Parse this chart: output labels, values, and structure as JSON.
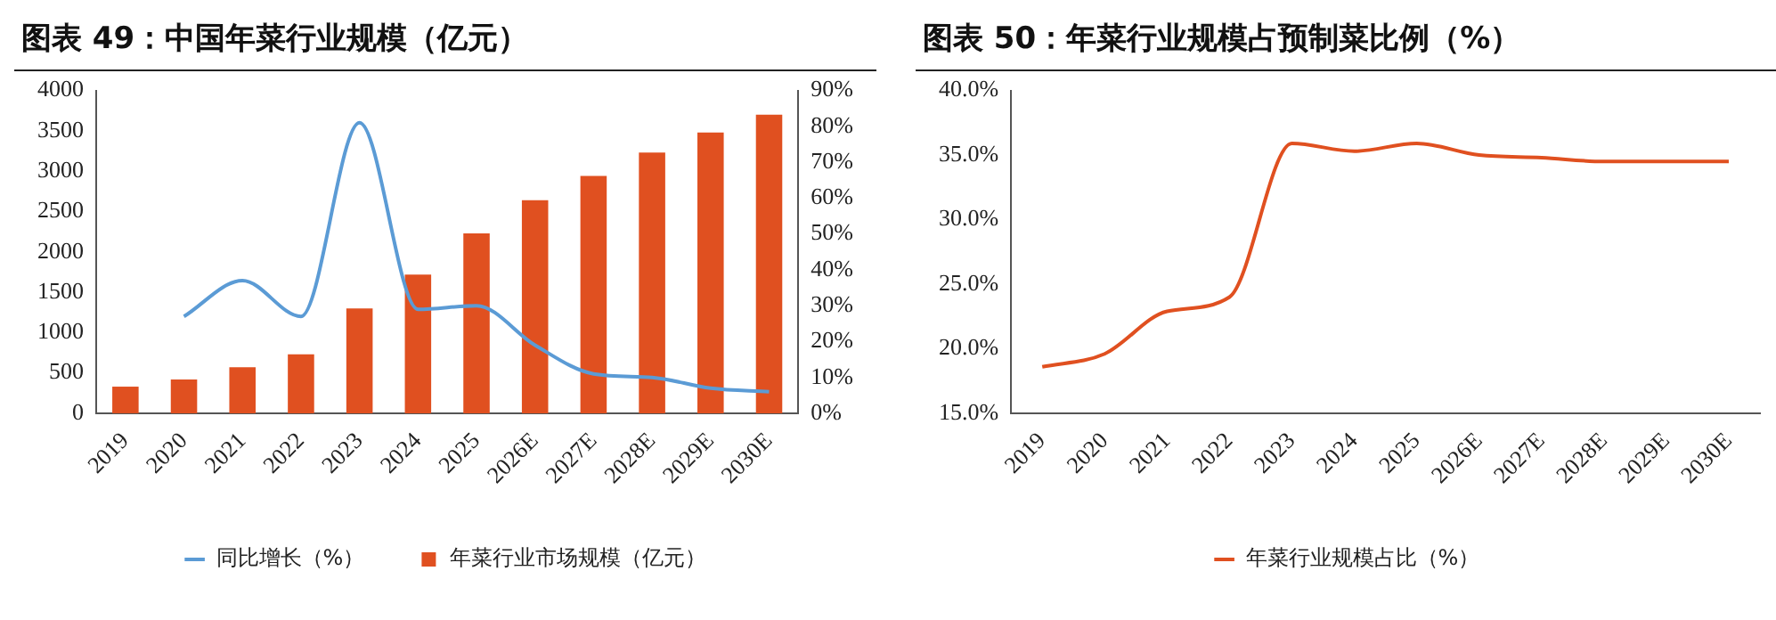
{
  "chart_data": [
    {
      "type": "bar",
      "title": "图表 49：中国年菜行业规模（亿元）",
      "categories": [
        "2019",
        "2020",
        "2021",
        "2022",
        "2023",
        "2024",
        "2025",
        "2026E",
        "2027E",
        "2028E",
        "2029E",
        "2030E"
      ],
      "series": [
        {
          "name": "年菜行业市场规模（亿元）",
          "color": "#e05020",
          "values": [
            330,
            420,
            570,
            730,
            1300,
            1720,
            2230,
            2640,
            2940,
            3230,
            3480,
            3700
          ]
        },
        {
          "name": "同比增长（%）",
          "type": "line",
          "axis": "y2",
          "color": "#5b9bd5",
          "values": [
            null,
            27,
            37,
            27,
            81,
            29,
            30,
            19,
            11,
            10,
            7,
            6
          ]
        }
      ],
      "ylim": [
        0,
        4000
      ],
      "yticks": [
        0,
        500,
        1000,
        1500,
        2000,
        2500,
        3000,
        3500,
        4000
      ],
      "y2lim": [
        0,
        90
      ],
      "y2ticks": [
        {
          "value": 0,
          "label": "0%"
        },
        {
          "value": 10,
          "label": "10%"
        },
        {
          "value": 20,
          "label": "20%"
        },
        {
          "value": 30,
          "label": "30%"
        },
        {
          "value": 40,
          "label": "40%"
        },
        {
          "value": 50,
          "label": "50%"
        },
        {
          "value": 60,
          "label": "60%"
        },
        {
          "value": 70,
          "label": "70%"
        },
        {
          "value": 80,
          "label": "80%"
        },
        {
          "value": 90,
          "label": "90%"
        }
      ],
      "grid": false,
      "legend": "bottom",
      "marker": "none",
      "line_style": "solid"
    },
    {
      "type": "line",
      "title": "图表 50：年菜行业规模占预制菜比例（%）",
      "categories": [
        "2019",
        "2020",
        "2021",
        "2022",
        "2023",
        "2024",
        "2025",
        "2026E",
        "2027E",
        "2028E",
        "2029E",
        "2030E"
      ],
      "series": [
        {
          "name": "年菜行业规模占比（%）",
          "color": "#e05020",
          "values": [
            18.6,
            19.6,
            22.9,
            24.0,
            35.9,
            35.3,
            35.9,
            35.0,
            34.8,
            34.5,
            34.5,
            34.5
          ]
        }
      ],
      "ylim": [
        15,
        40
      ],
      "yticks": [
        {
          "value": 15,
          "label": "15.0%"
        },
        {
          "value": 20,
          "label": "20.0%"
        },
        {
          "value": 25,
          "label": "25.0%"
        },
        {
          "value": 30,
          "label": "30.0%"
        },
        {
          "value": 35,
          "label": "35.0%"
        },
        {
          "value": 40,
          "label": "40.0%"
        }
      ],
      "grid": false,
      "legend": "bottom",
      "marker": "none",
      "line_style": "solid"
    }
  ]
}
